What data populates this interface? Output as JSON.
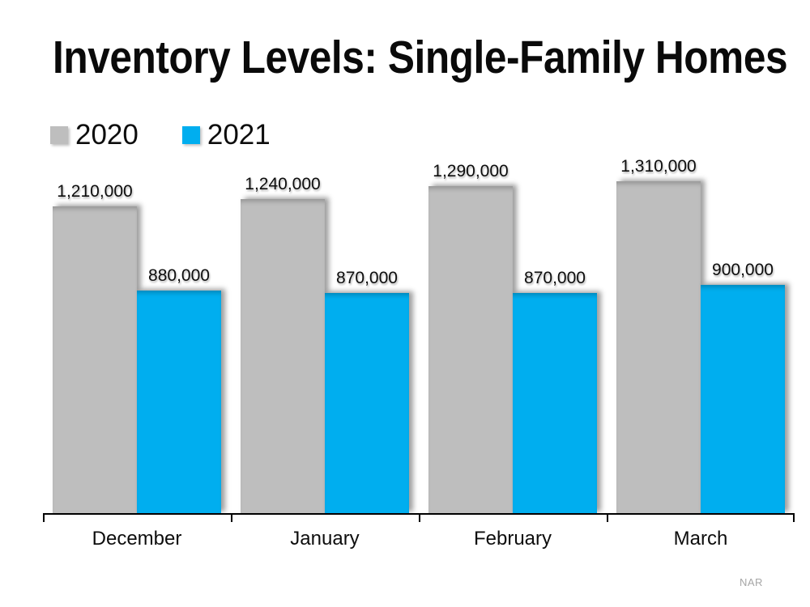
{
  "title": "Inventory Levels: Single-Family Homes",
  "source_label": "NAR",
  "colors": {
    "background": "#FFFFFF",
    "series_2020": "#BEBEBE",
    "series_2021": "#00AEEF",
    "axis": "#000000",
    "text": "#0D0D0D",
    "source_text": "#A6A6A6"
  },
  "legend": {
    "position": "top-left",
    "items": [
      {
        "label": "2020",
        "color": "#BEBEBE"
      },
      {
        "label": "2021",
        "color": "#00AEEF"
      }
    ]
  },
  "chart_data": {
    "type": "bar",
    "title": "Inventory Levels: Single-Family Homes",
    "categories": [
      "December",
      "January",
      "February",
      "March"
    ],
    "series": [
      {
        "name": "2020",
        "color": "#BEBEBE",
        "values": [
          1210000,
          1240000,
          1290000,
          1310000
        ],
        "data_labels": [
          "1,210,000",
          "1,240,000",
          "1,290,000",
          "1,310,000"
        ]
      },
      {
        "name": "2021",
        "color": "#00AEEF",
        "values": [
          880000,
          870000,
          870000,
          900000
        ],
        "data_labels": [
          "880,000",
          "870,000",
          "870,000",
          "900,000"
        ]
      }
    ],
    "ylim": [
      0,
      1310000
    ],
    "value_axis_visible": false,
    "gridlines": false,
    "legend_position": "top-left",
    "data_labels_visible": true,
    "source": "NAR"
  }
}
